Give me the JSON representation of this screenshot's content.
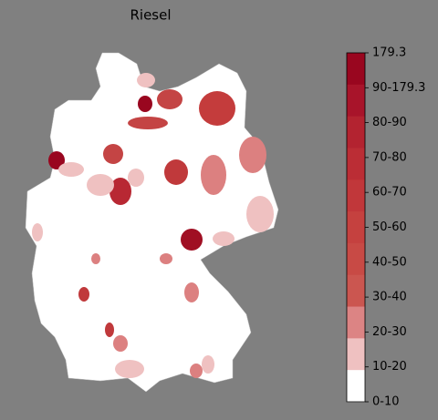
{
  "title": "Riesel",
  "legend": {
    "labels": [
      "179.3",
      "90-179.3",
      "80-90",
      "70-80",
      "60-70",
      "50-60",
      "40-50",
      "30-40",
      "20-30",
      "10-20",
      "0-10"
    ],
    "colors": [
      "#99061f",
      "#a8142a",
      "#b32330",
      "#bb2d35",
      "#c1373a",
      "#c5413f",
      "#c84a45",
      "#cb5650",
      "#dc8484",
      "#efc1c1",
      "#ffffff"
    ]
  }
}
